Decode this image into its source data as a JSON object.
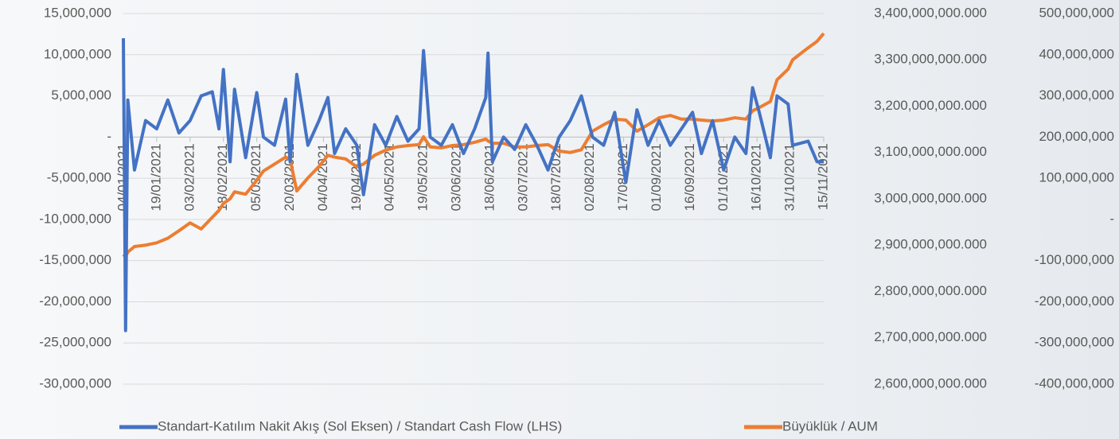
{
  "chart_data": {
    "type": "line",
    "x": [
      "04/01/2021",
      "05/01/2021",
      "06/01/2021",
      "09/01/2021",
      "14/01/2021",
      "19/01/2021",
      "24/01/2021",
      "29/01/2021",
      "03/02/2021",
      "08/02/2021",
      "13/02/2021",
      "16/02/2021",
      "18/02/2021",
      "21/02/2021",
      "23/02/2021",
      "28/02/2021",
      "05/03/2021",
      "08/03/2021",
      "13/03/2021",
      "18/03/2021",
      "20/03/2021",
      "23/03/2021",
      "28/03/2021",
      "02/04/2021",
      "06/04/2021",
      "09/04/2021",
      "14/04/2021",
      "19/04/2021",
      "22/04/2021",
      "27/04/2021",
      "02/05/2021",
      "07/05/2021",
      "12/05/2021",
      "17/05/2021",
      "19/05/2021",
      "22/05/2021",
      "27/05/2021",
      "01/06/2021",
      "06/06/2021",
      "11/06/2021",
      "16/06/2021",
      "17/06/2021",
      "19/06/2021",
      "24/06/2021",
      "29/06/2021",
      "04/07/2021",
      "09/07/2021",
      "14/07/2021",
      "19/07/2021",
      "24/07/2021",
      "29/07/2021",
      "03/08/2021",
      "08/08/2021",
      "13/08/2021",
      "18/08/2021",
      "23/08/2021",
      "28/08/2021",
      "02/09/2021",
      "07/09/2021",
      "12/09/2021",
      "17/09/2021",
      "21/09/2021",
      "26/09/2021",
      "01/10/2021",
      "06/10/2021",
      "11/10/2021",
      "14/10/2021",
      "17/10/2021",
      "22/10/2021",
      "25/10/2021",
      "30/10/2021",
      "01/11/2021",
      "08/11/2021",
      "12/11/2021",
      "15/11/2021"
    ],
    "xlim": [
      "04/01/2021",
      "15/11/2021"
    ],
    "xticks": [
      "04/01/2021",
      "19/01/2021",
      "03/02/2021",
      "18/02/2021",
      "05/03/2021",
      "20/03/2021",
      "04/04/2021",
      "19/04/2021",
      "04/05/2021",
      "19/05/2021",
      "03/06/2021",
      "18/06/2021",
      "03/07/2021",
      "18/07/2021",
      "02/08/2021",
      "17/08/2021",
      "01/09/2021",
      "16/09/2021",
      "01/10/2021",
      "16/10/2021",
      "31/10/2021",
      "15/11/2021"
    ],
    "series": [
      {
        "name": "Standart-Katılım Nakit Akış (Sol Eksen) / Standart Cash Flow (LHS)",
        "color": "#4472c4",
        "values": [
          12000000,
          -23500000,
          4500000,
          -4000000,
          2000000,
          1000000,
          4500000,
          500000,
          2000000,
          5000000,
          5500000,
          1000000,
          8200000,
          -3000000,
          5800000,
          -2500000,
          5400000,
          0,
          -1000000,
          4600000,
          -3000000,
          7600000,
          -1000000,
          2000000,
          4800000,
          -2000000,
          1000000,
          -1000000,
          -7000000,
          1500000,
          -1000000,
          2500000,
          -500000,
          1000000,
          10500000,
          0,
          -1000000,
          1500000,
          -2000000,
          1000000,
          4800000,
          10200000,
          -3000000,
          0,
          -1500000,
          1500000,
          -1000000,
          -4000000,
          0,
          2000000,
          5000000,
          0,
          -1000000,
          3000000,
          -5500000,
          3300000,
          -1000000,
          2000000,
          -1000000,
          1000000,
          3000000,
          -2000000,
          2000000,
          -4000000,
          0,
          -2000000,
          6000000,
          3000000,
          -2500000,
          5000000,
          4000000,
          -1000000,
          -500000,
          -3000000,
          -3000000
        ]
      },
      {
        "name": "Büyüklük / AUM",
        "color": "#ed7d31",
        "axis": "y2",
        "values": [
          2880000000,
          2875000000,
          2885000000,
          2897000000,
          2900000000,
          2905000000,
          2915000000,
          2931000000,
          2948000000,
          2935000000,
          2960000000,
          2975000000,
          2990000000,
          3000000000,
          3015000000,
          3010000000,
          3040000000,
          3060000000,
          3075000000,
          3090000000,
          3085000000,
          3017000000,
          3045000000,
          3070000000,
          3094000000,
          3090000000,
          3086000000,
          3069000000,
          3075000000,
          3094000000,
          3105000000,
          3112000000,
          3115000000,
          3117000000,
          3134000000,
          3112000000,
          3110000000,
          3115000000,
          3117000000,
          3122000000,
          3129000000,
          3125000000,
          3120000000,
          3120000000,
          3112000000,
          3112000000,
          3115000000,
          3117000000,
          3103000000,
          3100000000,
          3106000000,
          3146000000,
          3160000000,
          3172000000,
          3170000000,
          3146000000,
          3160000000,
          3175000000,
          3180000000,
          3172000000,
          3172000000,
          3170000000,
          3168000000,
          3170000000,
          3175000000,
          3172000000,
          3190000000,
          3197000000,
          3210000000,
          3257000000,
          3280000000,
          3300000000,
          3326000000,
          3340000000,
          3357000000
        ]
      }
    ],
    "ylim": [
      -30000000,
      15000000
    ],
    "yticks": [
      {
        "value": 15000000,
        "label": "15,000,000"
      },
      {
        "value": 10000000,
        "label": "10,000,000"
      },
      {
        "value": 5000000,
        "label": "5,000,000"
      },
      {
        "value": 0,
        "label": "-"
      },
      {
        "value": -5000000,
        "label": "-5,000,000"
      },
      {
        "value": -10000000,
        "label": "-10,000,000"
      },
      {
        "value": -15000000,
        "label": "-15,000,000"
      },
      {
        "value": -20000000,
        "label": "-20,000,000"
      },
      {
        "value": -25000000,
        "label": "-25,000,000"
      },
      {
        "value": -30000000,
        "label": "-30,000,000"
      }
    ],
    "y2lim": [
      2600000000,
      3400000000
    ],
    "y2ticks": [
      {
        "value": 3400000000,
        "label": "3,400,000,000.000"
      },
      {
        "value": 3300000000,
        "label": "3,300,000,000.000"
      },
      {
        "value": 3200000000,
        "label": "3,200,000,000.000"
      },
      {
        "value": 3100000000,
        "label": "3,100,000,000.000"
      },
      {
        "value": 3000000000,
        "label": "3,000,000,000.000"
      },
      {
        "value": 2900000000,
        "label": "2,900,000,000.000"
      },
      {
        "value": 2800000000,
        "label": "2,800,000,000.000"
      },
      {
        "value": 2700000000,
        "label": "2,700,000,000.000"
      },
      {
        "value": 2600000000,
        "label": "2,600,000,000.000"
      }
    ],
    "y3lim": [
      -400000000,
      500000000
    ],
    "y3ticks": [
      {
        "value": 500000000,
        "label": "500,000,000"
      },
      {
        "value": 400000000,
        "label": "400,000,000"
      },
      {
        "value": 300000000,
        "label": "300,000,000"
      },
      {
        "value": 200000000,
        "label": "200,000,000"
      },
      {
        "value": 100000000,
        "label": "100,000,000"
      },
      {
        "value": 0,
        "label": "-"
      },
      {
        "value": -100000000,
        "label": "-100,000,000"
      },
      {
        "value": -200000000,
        "label": "-200,000,000"
      },
      {
        "value": -300000000,
        "label": "-300,000,000"
      },
      {
        "value": -400000000,
        "label": "-400,000,000"
      }
    ],
    "grid": true,
    "legend": "bottom"
  }
}
